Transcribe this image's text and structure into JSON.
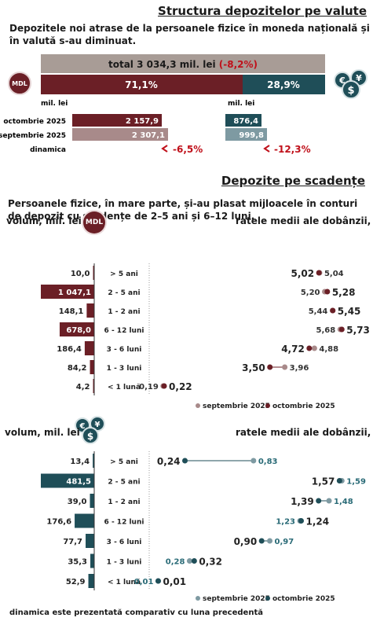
{
  "structure": {
    "title": "Structura depozitelor pe valute",
    "subtitle": "Depozitele noi atrase de la persoanele fizice în moneda națională și în valută s-au diminuat.",
    "total_label": "total 3 034,3 mil. lei",
    "total_change": "(-8,2%)",
    "mdl_share": "71,1%",
    "fx_share": "28,9%",
    "unit_mdl": "mil. lei",
    "unit_fx": "mil. lei",
    "rows": [
      "octombrie 2025",
      "septembrie 2025",
      "dinamica"
    ],
    "mdl_oct": "2 157,9",
    "mdl_sep": "2 307,1",
    "fx_oct": "876,4",
    "fx_sep": "999,8",
    "mdl_dyn": "-6,5%",
    "fx_dyn": "-12,3%"
  },
  "maturity": {
    "title": "Depozite pe scadențe",
    "subtitle": "Persoanele fizice, în mare parte, și-au plasat mijloacele în conturi de depozit cu scadențe de 2–5 ani și 6–12 luni.",
    "volume_label": "volum, mil. lei",
    "rates_label": "ratele medii ale dobânzii, %",
    "mdl_badge": "MDL",
    "legend_sep": "septembrie 2025",
    "legend_oct": "octombrie 2025"
  },
  "footnote": "dinamica este prezentată comparativ cu luna precedentă",
  "colors": {
    "mdl_dark": "#6b1f26",
    "mdl_light": "#a88a8a",
    "fx_dark": "#1f4e58",
    "fx_light": "#7e9aa2",
    "negative": "#c0101a",
    "total_bar": "#a89c96"
  },
  "icons": [
    "mdl-coin-icon",
    "fx-currency-icon",
    "down-arrow-icon"
  ],
  "chart_data": [
    {
      "type": "bar",
      "series_label": "MDL",
      "categories": [
        "> 5 ani",
        "2 - 5 ani",
        "1 - 2 ani",
        "6 - 12 luni",
        "3 - 6 luni",
        "1 - 3 luni",
        "< 1 lună"
      ],
      "values": [
        10.0,
        1047.1,
        148.1,
        678.0,
        186.4,
        84.2,
        4.2
      ],
      "labels": [
        "10,0",
        "1 047,1",
        "148,1",
        "678,0",
        "186,4",
        "84,2",
        "4,2"
      ]
    },
    {
      "type": "scatter",
      "series_label": "MDL rates",
      "categories": [
        "> 5 ani",
        "2 - 5 ani",
        "1 - 2 ani",
        "6 - 12 luni",
        "3 - 6 luni",
        "1 - 3 luni",
        "< 1 lună"
      ],
      "series": [
        {
          "name": "septembrie 2025",
          "values": [
            5.04,
            5.2,
            5.44,
            5.68,
            4.88,
            3.96,
            0.19
          ],
          "labels": [
            "5,04",
            "5,20",
            "5,44",
            "5,68",
            "4,88",
            "3,96",
            "0,19"
          ]
        },
        {
          "name": "octombrie 2025",
          "values": [
            5.02,
            5.28,
            5.45,
            5.73,
            4.72,
            3.5,
            0.22
          ],
          "labels": [
            "5,02",
            "5,28",
            "5,45",
            "5,73",
            "4,72",
            "3,50",
            "0,22"
          ]
        }
      ]
    },
    {
      "type": "bar",
      "series_label": "FX",
      "categories": [
        "> 5 ani",
        "2 - 5 ani",
        "1 - 2 ani",
        "6 - 12 luni",
        "3 - 6 luni",
        "1 - 3 luni",
        "< 1 lună"
      ],
      "values": [
        13.4,
        481.5,
        39.0,
        176.6,
        77.7,
        35.3,
        52.9
      ],
      "labels": [
        "13,4",
        "481,5",
        "39,0",
        "176,6",
        "77,7",
        "35,3",
        "52,9"
      ]
    },
    {
      "type": "scatter",
      "series_label": "FX rates",
      "categories": [
        "> 5 ani",
        "2 - 5 ani",
        "1 - 2 ani",
        "6 - 12 luni",
        "3 - 6 luni",
        "1 - 3 luni",
        "< 1 lună"
      ],
      "series": [
        {
          "name": "septembrie 2025",
          "values": [
            0.83,
            1.59,
            1.48,
            1.23,
            0.97,
            0.28,
            0.01
          ],
          "labels": [
            "0,83",
            "1,59",
            "1,48",
            "1,23",
            "0,97",
            "0,28",
            "0,01"
          ]
        },
        {
          "name": "octombrie 2025",
          "values": [
            0.24,
            1.57,
            1.39,
            1.24,
            0.9,
            0.32,
            0.01
          ],
          "labels": [
            "0,24",
            "1,57",
            "1,39",
            "1,24",
            "0,90",
            "0,32",
            "0,01"
          ]
        }
      ]
    }
  ]
}
